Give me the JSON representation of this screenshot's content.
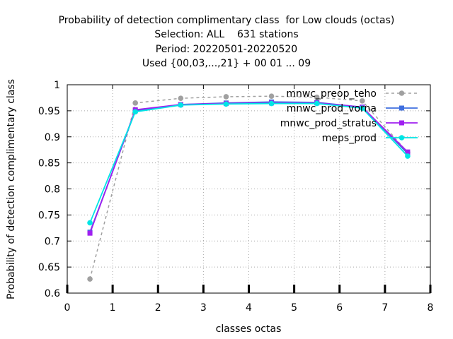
{
  "chart_data": {
    "type": "line",
    "title_lines": [
      "Probability of detection complimentary class  for Low clouds (octas)",
      "Selection: ALL    631 stations",
      "Period: 20220501-20220520",
      "Used {00,03,...,21} + 00 01 ... 09"
    ],
    "xlabel": "classes octas",
    "ylabel": "Probability of detection complimentary class",
    "xlim": [
      0,
      8
    ],
    "ylim": [
      0.6,
      1.0
    ],
    "x_ticks": [
      "0",
      "1",
      "2",
      "3",
      "4",
      "5",
      "6",
      "7",
      "8"
    ],
    "y_ticks": [
      "0.6",
      "0.65",
      "0.7",
      "0.75",
      "0.8",
      "0.85",
      "0.9",
      "0.95",
      "1"
    ],
    "grid": true,
    "legend_position": "top-right",
    "x": [
      0.5,
      1.5,
      2.5,
      3.5,
      4.5,
      5.5,
      6.5,
      7.5
    ],
    "series": [
      {
        "name": "mnwc_preop_teho",
        "color": "#a0a0a0",
        "dashed": true,
        "marker": "circle",
        "values": [
          0.627,
          0.965,
          0.974,
          0.977,
          0.978,
          0.976,
          0.969,
          0.87
        ]
      },
      {
        "name": "mnwc_prod_vorna",
        "color": "#3f6fdf",
        "dashed": false,
        "marker": "square",
        "values": [
          0.717,
          0.95,
          0.962,
          0.965,
          0.967,
          0.966,
          0.957,
          0.868
        ]
      },
      {
        "name": "mnwc_prod_stratus",
        "color": "#a020f0",
        "dashed": false,
        "marker": "square",
        "values": [
          0.715,
          0.952,
          0.962,
          0.964,
          0.965,
          0.965,
          0.957,
          0.871
        ]
      },
      {
        "name": "meps_prod",
        "color": "#00e5e5",
        "dashed": false,
        "marker": "circle",
        "values": [
          0.735,
          0.948,
          0.961,
          0.963,
          0.964,
          0.964,
          0.955,
          0.863
        ]
      }
    ]
  }
}
